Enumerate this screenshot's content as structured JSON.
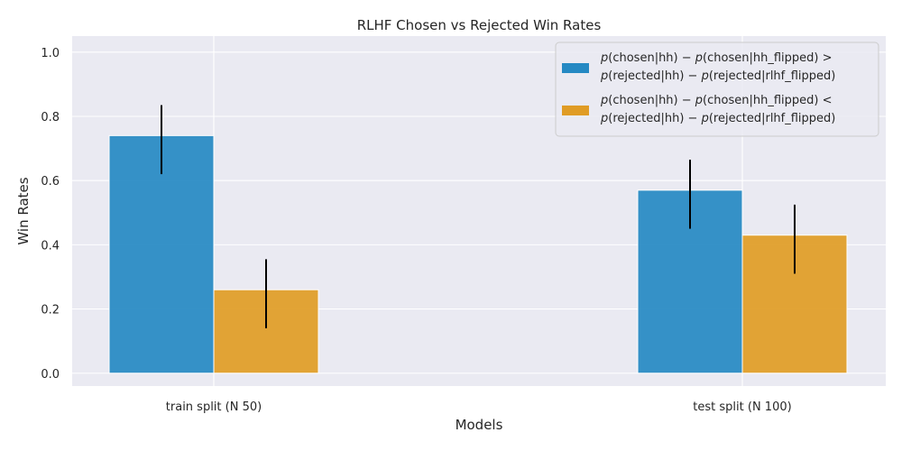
{
  "chart_data": {
    "type": "bar",
    "title": "RLHF Chosen vs Rejected Win Rates",
    "xlabel": "Models",
    "ylabel": "Win Rates",
    "categories": [
      "train split (N 50)",
      "test split (N 100)"
    ],
    "ylim": [
      -0.04,
      1.05
    ],
    "yticks": [
      0.0,
      0.2,
      0.4,
      0.6,
      0.8,
      1.0
    ],
    "ytick_labels": [
      "0.0",
      "0.2",
      "0.4",
      "0.6",
      "0.8",
      "1.0"
    ],
    "grid": true,
    "legend_position": "top-right",
    "series": [
      {
        "name_lines": [
          {
            "pre": "",
            "fn1": "p",
            "mid1": "(chosen|hh) − ",
            "fn2": "p",
            "post": "(chosen|hh_flipped) >"
          },
          {
            "pre": "",
            "fn1": "p",
            "mid1": "(rejected|hh) − ",
            "fn2": "p",
            "post": "(rejected|rlhf_flipped)"
          }
        ],
        "color": "#2589c3",
        "values": [
          0.74,
          0.57
        ],
        "err_low": [
          0.62,
          0.45
        ],
        "err_high": [
          0.835,
          0.665
        ]
      },
      {
        "name_lines": [
          {
            "pre": "",
            "fn1": "p",
            "mid1": "(chosen|hh) − ",
            "fn2": "p",
            "post": "(chosen|hh_flipped) <"
          },
          {
            "pre": "",
            "fn1": "p",
            "mid1": "(rejected|hh) − ",
            "fn2": "p",
            "post": "(rejected|rlhf_flipped)"
          }
        ],
        "color": "#e09c25",
        "values": [
          0.26,
          0.43
        ],
        "err_low": [
          0.14,
          0.31
        ],
        "err_high": [
          0.355,
          0.525
        ]
      }
    ]
  }
}
